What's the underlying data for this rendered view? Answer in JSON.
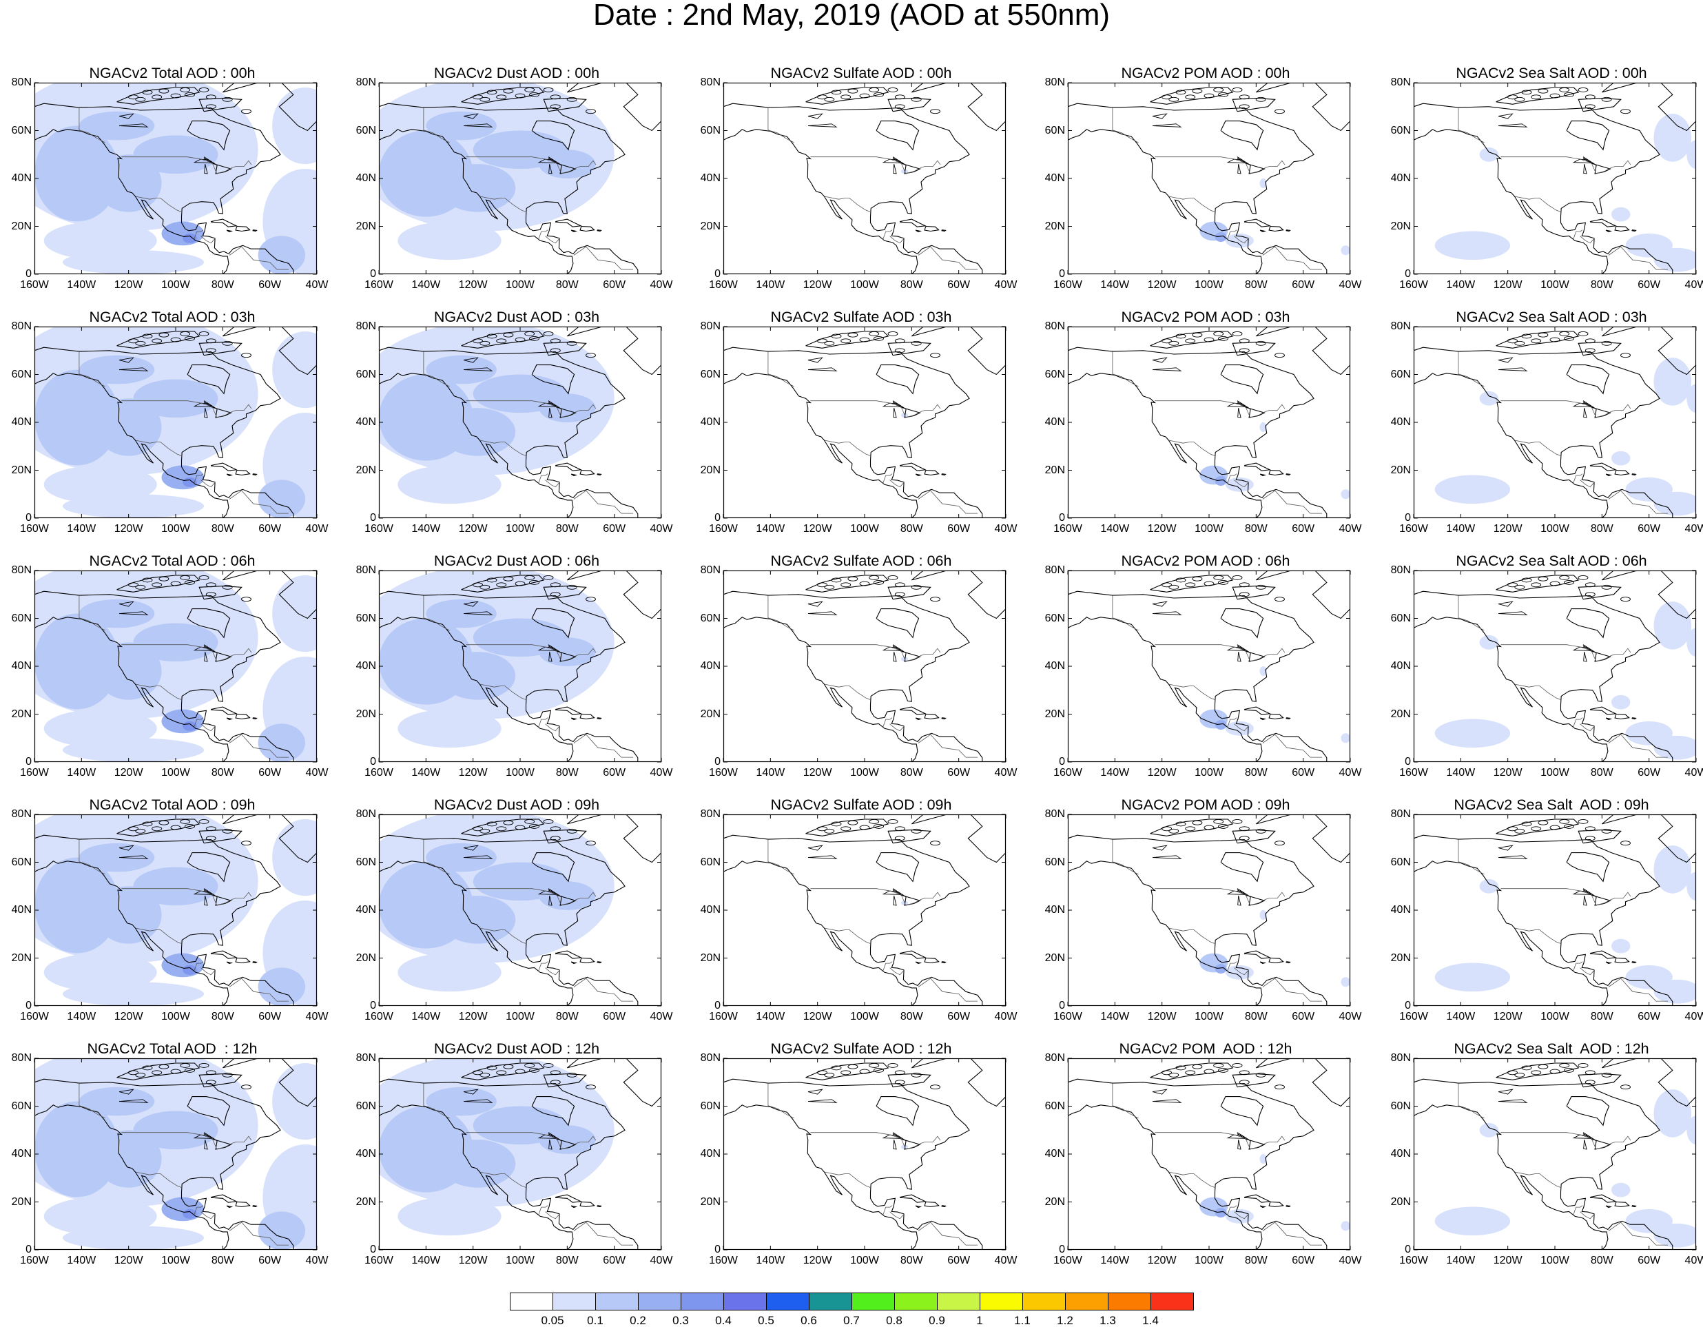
{
  "title": "Date : 2nd May, 2019 (AOD at 550nm)",
  "lat_labels": [
    "80N",
    "60N",
    "40N",
    "20N",
    "0"
  ],
  "lon_labels": [
    "160W",
    "140W",
    "120W",
    "100W",
    "80W",
    "60W",
    "40W"
  ],
  "panels": [
    {
      "title": "NGACv2 Total AOD : 00h",
      "species": "total"
    },
    {
      "title": "NGACv2 Dust AOD : 00h",
      "species": "dust"
    },
    {
      "title": "NGACv2 Sulfate AOD : 00h",
      "species": "sulfate"
    },
    {
      "title": "NGACv2 POM AOD : 00h",
      "species": "pom"
    },
    {
      "title": "NGACv2 Sea Salt AOD : 00h",
      "species": "seasalt"
    },
    {
      "title": "NGACv2 Total AOD : 03h",
      "species": "total"
    },
    {
      "title": "NGACv2 Dust AOD : 03h",
      "species": "dust"
    },
    {
      "title": "NGACv2 Sulfate AOD : 03h",
      "species": "sulfate"
    },
    {
      "title": "NGACv2 POM AOD : 03h",
      "species": "pom"
    },
    {
      "title": "NGACv2 Sea Salt AOD : 03h",
      "species": "seasalt"
    },
    {
      "title": "NGACv2 Total AOD : 06h",
      "species": "total"
    },
    {
      "title": "NGACv2 Dust AOD : 06h",
      "species": "dust"
    },
    {
      "title": "NGACv2 Sulfate AOD : 06h",
      "species": "sulfate"
    },
    {
      "title": "NGACv2 POM AOD : 06h",
      "species": "pom"
    },
    {
      "title": "NGACv2 Sea Salt AOD : 06h",
      "species": "seasalt"
    },
    {
      "title": "NGACv2 Total AOD : 09h",
      "species": "total"
    },
    {
      "title": "NGACv2 Dust AOD : 09h",
      "species": "dust"
    },
    {
      "title": "NGACv2 Sulfate AOD : 09h",
      "species": "sulfate"
    },
    {
      "title": "NGACv2 POM AOD : 09h",
      "species": "pom"
    },
    {
      "title": "NGACv2 Sea Salt  AOD : 09h",
      "species": "seasalt"
    },
    {
      "title": "NGACv2 Total AOD  : 12h",
      "species": "total"
    },
    {
      "title": "NGACv2 Dust AOD : 12h",
      "species": "dust"
    },
    {
      "title": "NGACv2 Sulfate AOD : 12h",
      "species": "sulfate"
    },
    {
      "title": "NGACv2 POM  AOD : 12h",
      "species": "pom"
    },
    {
      "title": "NGACv2 Sea Salt  AOD : 12h",
      "species": "seasalt"
    }
  ],
  "colorbar": {
    "labels": [
      "0.05",
      "0.1",
      "0.2",
      "0.3",
      "0.4",
      "0.5",
      "0.6",
      "0.7",
      "0.8",
      "0.9",
      "1",
      "1.1",
      "1.2",
      "1.3",
      "1.4"
    ],
    "colors": [
      "#ffffff",
      "#d7e1fb",
      "#b7c9f7",
      "#98b0f2",
      "#7f96ee",
      "#6a73ea",
      "#1e5ff0",
      "#199494",
      "#52ef1c",
      "#8cf21c",
      "#c8f546",
      "#fafa00",
      "#fbc800",
      "#fba000",
      "#fb7a00",
      "#fa3219"
    ]
  }
}
